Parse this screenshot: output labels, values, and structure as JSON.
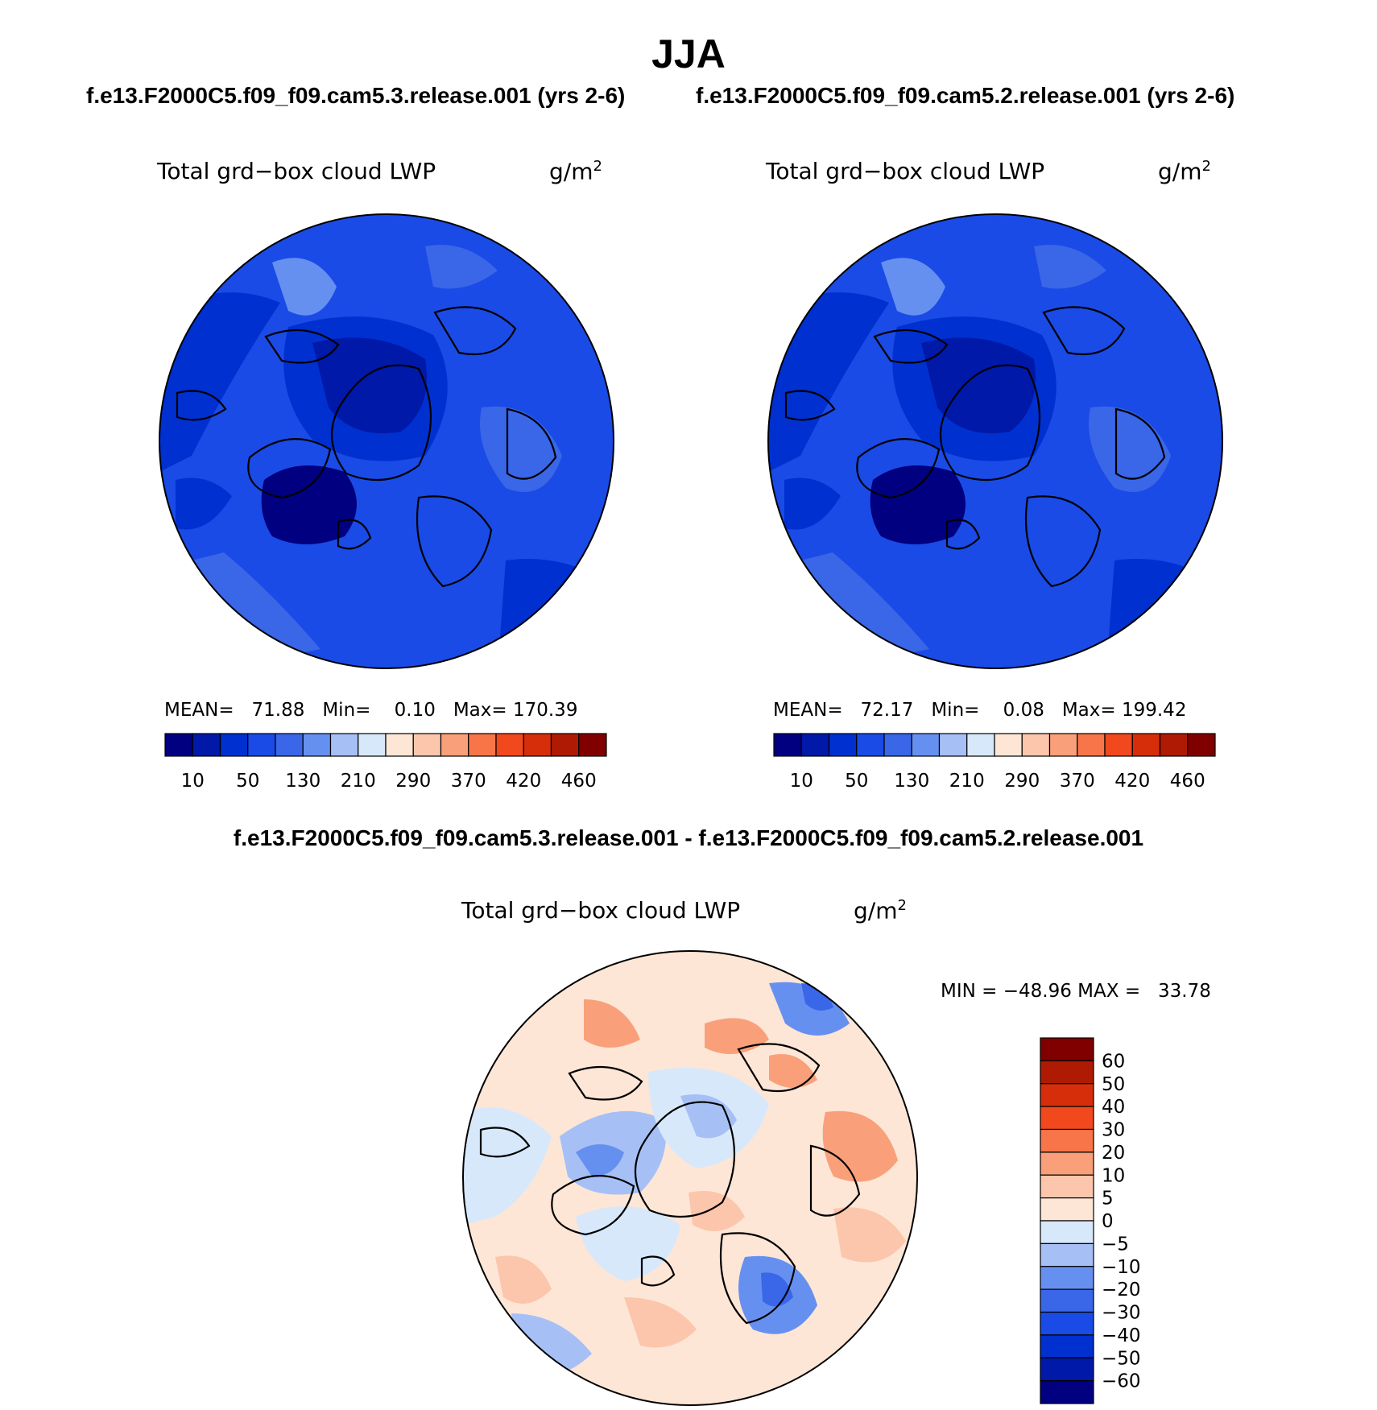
{
  "title": "JJA",
  "left_case": "f.e13.F2000C5.f09_f09.cam5.3.release.001 (yrs 2-6)",
  "right_case": "f.e13.F2000C5.f09_f09.cam5.2.release.001 (yrs 2-6)",
  "diff_case": "f.e13.F2000C5.f09_f09.cam5.3.release.001 - f.e13.F2000C5.f09_f09.cam5.2.release.001",
  "panels": {
    "left": {
      "variable": "Total grd−box cloud LWP",
      "units": "g/m",
      "units_exp": "2",
      "mean_label": "MEAN=",
      "mean": "71.88",
      "min_label": "Min=",
      "min": "0.10",
      "max_label": "Max=",
      "max": "170.39"
    },
    "right": {
      "variable": "Total grd−box cloud LWP",
      "units": "g/m",
      "units_exp": "2",
      "mean_label": "MEAN=",
      "mean": "72.17",
      "min_label": "Min=",
      "min": "0.08",
      "max_label": "Max=",
      "max": "199.42"
    },
    "diff": {
      "variable": "Total grd−box cloud LWP",
      "units": "g/m",
      "units_exp": "2",
      "min_label": "MIN =",
      "min": "−48.96",
      "max_label": "MAX =",
      "max": "33.78"
    }
  },
  "colorbar_abs": {
    "colors": [
      "#000080",
      "#0019a8",
      "#0030d0",
      "#1a4be6",
      "#3a66e8",
      "#6690f0",
      "#a6c0f6",
      "#d8e8fb",
      "#fde6d6",
      "#fcc6ac",
      "#f9a07a",
      "#f77548",
      "#f2481e",
      "#d62e0a",
      "#ae1a04",
      "#800000"
    ],
    "labels": [
      "10",
      "50",
      "130",
      "210",
      "290",
      "370",
      "420",
      "460"
    ]
  },
  "colorbar_diff": {
    "colors_top_to_bottom": [
      "#800000",
      "#ae1a04",
      "#d62e0a",
      "#f2481e",
      "#f77548",
      "#f9a07a",
      "#fcc6ac",
      "#fde6d6",
      "#d8e8fb",
      "#a6c0f6",
      "#6690f0",
      "#3a66e8",
      "#1a4be6",
      "#0030d0",
      "#0019a8",
      "#000080"
    ],
    "labels": [
      "60",
      "50",
      "40",
      "30",
      "20",
      "10",
      "5",
      "0",
      "−5",
      "−10",
      "−20",
      "−30",
      "−40",
      "−50",
      "−60"
    ]
  },
  "map_colors": {
    "abs_ocean": "#1a4be6",
    "abs_dark": "#0030d0",
    "abs_darker": "#0019a8",
    "abs_darkest": "#000080",
    "abs_mid": "#3a66e8",
    "abs_light": "#6690f0",
    "diff_base": "#fde6d6",
    "diff_pos": "#fcc6ac",
    "diff_pos2": "#f9a07a",
    "diff_neg": "#d8e8fb",
    "diff_neg2": "#a6c0f6",
    "diff_neg3": "#6690f0",
    "diff_neg4": "#3a66e8"
  }
}
